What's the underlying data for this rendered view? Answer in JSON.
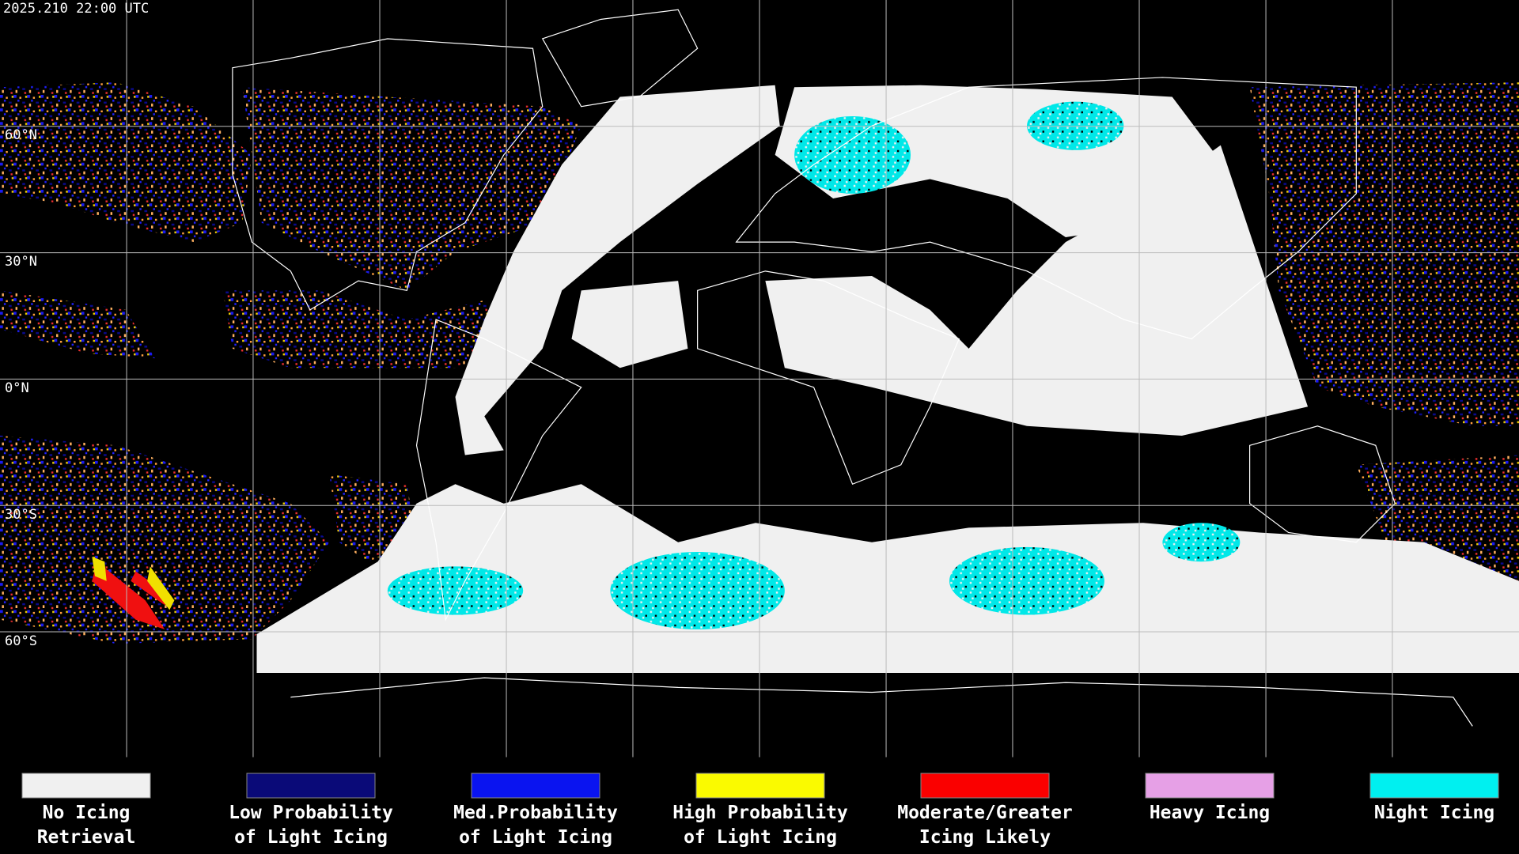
{
  "header": {
    "timestamp": "2025.210 22:00 UTC"
  },
  "map": {
    "latitude_labels": [
      "60°N",
      "30°N",
      "0°N",
      "30°S",
      "60°S"
    ]
  },
  "legend": {
    "items": [
      {
        "label_lines": [
          "No Icing",
          "Retrieval"
        ],
        "color": "#f0f0f0"
      },
      {
        "label_lines": [
          "Low Probability",
          "of Light Icing"
        ],
        "color": "#0a0a78"
      },
      {
        "label_lines": [
          "Med.Probability",
          "of Light Icing"
        ],
        "color": "#0a14f0"
      },
      {
        "label_lines": [
          "High Probability",
          "of Light Icing"
        ],
        "color": "#fafa00"
      },
      {
        "label_lines": [
          "Moderate/Greater",
          "Icing Likely"
        ],
        "color": "#fa0000"
      },
      {
        "label_lines": [
          "Heavy Icing"
        ],
        "color": "#e6a0e6"
      },
      {
        "label_lines": [
          "Night Icing"
        ],
        "color": "#00f0f0"
      }
    ]
  }
}
